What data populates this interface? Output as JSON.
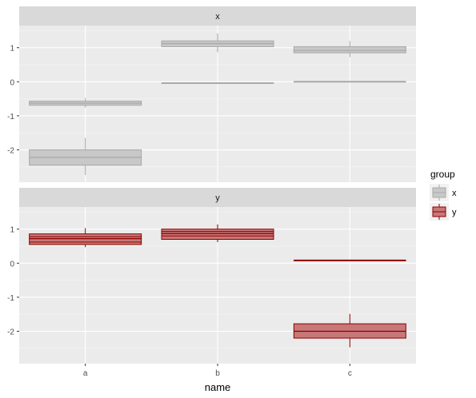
{
  "chart_data": {
    "type": "boxplot",
    "facet_by": "group",
    "facets": [
      "x",
      "y"
    ],
    "categories": [
      "a",
      "b",
      "c"
    ],
    "xlabel": "name",
    "ylabel": "",
    "ylim": [
      -2.95,
      1.65
    ],
    "yticks": [
      -2,
      -1,
      0,
      1
    ],
    "grid": true,
    "legend": {
      "title": "group",
      "position": "right",
      "entries": [
        {
          "label": "x",
          "fill": "#c8c8c8",
          "stroke": "#a8a8a8"
        },
        {
          "label": "y",
          "fill": "#c87878",
          "stroke": "#8b0000"
        }
      ]
    },
    "panels": [
      {
        "facet": "x",
        "boxes": [
          {
            "category": "a",
            "group": "x",
            "min": -0.76,
            "q1": -0.69,
            "median": -0.63,
            "q3": -0.57,
            "max": -0.48
          },
          {
            "category": "a",
            "group": "x",
            "min": -2.74,
            "q1": -2.45,
            "median": -2.22,
            "q3": -2.0,
            "max": -1.65
          },
          {
            "category": "b",
            "group": "x",
            "min": 0.87,
            "q1": 1.03,
            "median": 1.12,
            "q3": 1.2,
            "max": 1.42
          },
          {
            "category": "b",
            "group": "x",
            "min": -0.04,
            "q1": -0.04,
            "median": -0.04,
            "q3": -0.04,
            "max": -0.04
          },
          {
            "category": "c",
            "group": "x",
            "min": 0.72,
            "q1": 0.85,
            "median": 0.92,
            "q3": 1.03,
            "max": 1.2
          },
          {
            "category": "c",
            "group": "x",
            "min": 0.0,
            "q1": 0.0,
            "median": 0.0,
            "q3": 0.0,
            "max": 0.0
          }
        ]
      },
      {
        "facet": "y",
        "boxes": [
          {
            "category": "a",
            "group": "y",
            "min": 0.47,
            "q1": 0.55,
            "median": 0.72,
            "q3": 0.86,
            "max": 1.03
          },
          {
            "category": "b",
            "group": "y",
            "min": 0.62,
            "q1": 0.7,
            "median": 0.87,
            "q3": 1.0,
            "max": 1.14
          },
          {
            "category": "c",
            "group": "y",
            "min": 0.08,
            "q1": 0.08,
            "median": 0.08,
            "q3": 0.08,
            "max": 0.08
          },
          {
            "category": "c",
            "group": "y",
            "min": -2.47,
            "q1": -2.2,
            "median": -2.0,
            "q3": -1.78,
            "max": -1.49
          }
        ]
      }
    ],
    "inner_lines": [
      {
        "facet": "y",
        "category": "a",
        "values": [
          0.62,
          0.78
        ]
      },
      {
        "facet": "y",
        "category": "b",
        "values": [
          0.8,
          0.93
        ]
      }
    ]
  }
}
